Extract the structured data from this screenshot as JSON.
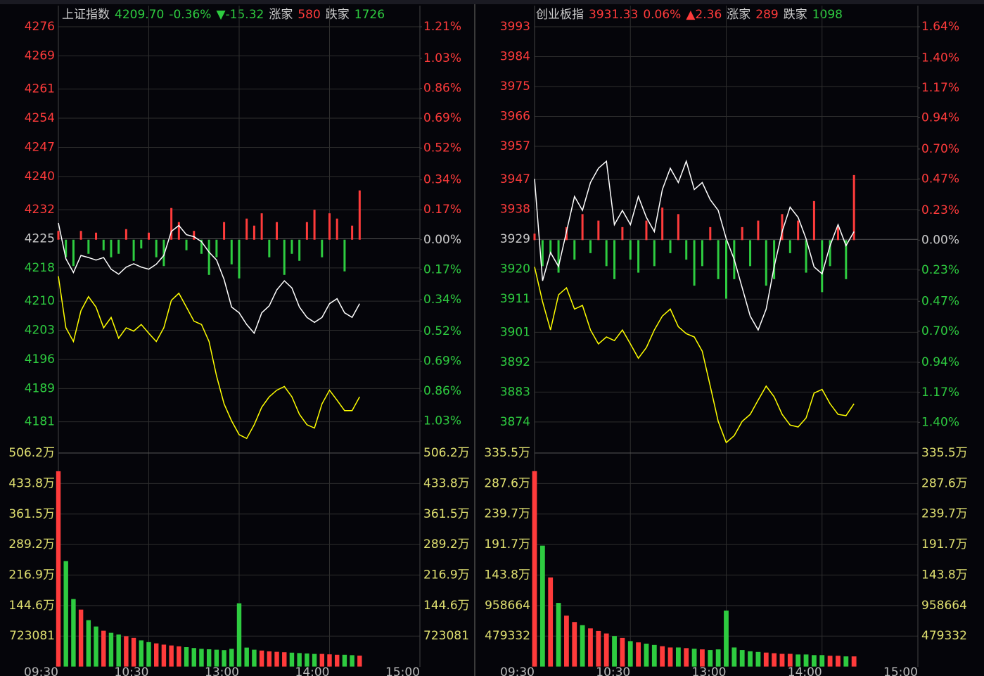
{
  "chart_data": [
    {
      "type": "line",
      "header": [
        {
          "text": "上证指数",
          "color": "#cccccc"
        },
        {
          "text": "4209.70",
          "color": "#2ecc40"
        },
        {
          "text": "-0.36%",
          "color": "#2ecc40"
        },
        {
          "text": "▼-15.32",
          "color": "#2ecc40"
        },
        {
          "text": "涨家",
          "color": "#cccccc"
        },
        {
          "text": "580",
          "color": "#ff3b3b"
        },
        {
          "text": "跌家",
          "color": "#cccccc"
        },
        {
          "text": "1726",
          "color": "#2ecc40"
        }
      ],
      "up_color": "#ff3b3b",
      "down_color": "#2ecc40",
      "flat_color": "#cccccc",
      "x": [
        0,
        5,
        10,
        15,
        20,
        25,
        30,
        35,
        40,
        45,
        50,
        55,
        60,
        65,
        70,
        75,
        80,
        85,
        90,
        95,
        100,
        105,
        110,
        115,
        120,
        125,
        130,
        135,
        140,
        145,
        150,
        155,
        160,
        165,
        170,
        175,
        180,
        185,
        190,
        195,
        200
      ],
      "xlim": [
        0,
        240
      ],
      "xticks": [
        {
          "value": 0,
          "label": "09:30"
        },
        {
          "value": 60,
          "label": "10:30"
        },
        {
          "value": 120,
          "label": "13:00"
        },
        {
          "value": 180,
          "label": "14:00"
        },
        {
          "value": 240,
          "label": "15:00"
        }
      ],
      "ylim": [
        4174,
        4276
      ],
      "yticks": [
        4276,
        4269,
        4261,
        4254,
        4247,
        4240,
        4232,
        4225,
        4218,
        4210,
        4203,
        4196,
        4189,
        4181
      ],
      "y2lim": [
        -1.2,
        1.21
      ],
      "y2ticks": [
        {
          "value": 1.21,
          "label": "1.21%"
        },
        {
          "value": 1.03,
          "label": "1.03%"
        },
        {
          "value": 0.86,
          "label": "0.86%"
        },
        {
          "value": 0.69,
          "label": "0.69%"
        },
        {
          "value": 0.52,
          "label": "0.52%"
        },
        {
          "value": 0.34,
          "label": "0.34%"
        },
        {
          "value": 0.17,
          "label": "0.17%"
        },
        {
          "value": 0,
          "label": "0.00%"
        },
        {
          "value": -0.17,
          "label": "0.17%"
        },
        {
          "value": -0.34,
          "label": "0.34%"
        },
        {
          "value": -0.52,
          "label": "0.52%"
        },
        {
          "value": -0.69,
          "label": "0.69%"
        },
        {
          "value": -0.86,
          "label": "0.86%"
        },
        {
          "value": -1.03,
          "label": "1.03%"
        }
      ],
      "series": [
        {
          "color": "#ffffff",
          "values": [
            4228.8,
            4220.2,
            4216.9,
            4221.0,
            4220.5,
            4219.9,
            4220.5,
            4217.7,
            4216.5,
            4218.2,
            4219.0,
            4218.2,
            4217.7,
            4218.9,
            4221.0,
            4226.8,
            4228.2,
            4226.0,
            4225.5,
            4224.3,
            4221.8,
            4219.9,
            4215.2,
            4208.6,
            4207.2,
            4204.4,
            4202.3,
            4207.2,
            4208.9,
            4212.7,
            4214.9,
            4213.2,
            4208.6,
            4206.1,
            4204.9,
            4206.1,
            4209.4,
            4210.6,
            4207.2,
            4206.1,
            4209.4
          ]
        },
        {
          "color": "#ffff00",
          "values": [
            4216.0,
            4203.6,
            4200.3,
            4207.7,
            4211.1,
            4208.6,
            4203.6,
            4206.1,
            4201.1,
            4203.6,
            4202.8,
            4204.4,
            4202.3,
            4200.3,
            4203.6,
            4210.2,
            4211.9,
            4208.6,
            4205.2,
            4204.4,
            4200.3,
            4192.0,
            4185.3,
            4181.2,
            4177.9,
            4177.0,
            4180.3,
            4184.5,
            4187.0,
            4188.6,
            4189.5,
            4187.0,
            4182.8,
            4180.3,
            4179.5,
            4185.3,
            4188.6,
            4186.2,
            4183.7,
            4183.7,
            4187.0
          ]
        },
        {
          "type": "bar",
          "axis": "y2",
          "values": [
            0.05,
            -0.1,
            -0.15,
            0.05,
            -0.08,
            0.04,
            -0.06,
            -0.1,
            -0.08,
            0.06,
            -0.12,
            -0.05,
            0.04,
            -0.1,
            -0.15,
            0.18,
            0.1,
            -0.06,
            0.05,
            -0.08,
            -0.2,
            -0.1,
            0.1,
            -0.14,
            -0.22,
            0.12,
            0.08,
            0.15,
            -0.1,
            0.1,
            -0.2,
            -0.08,
            -0.12,
            0.1,
            0.17,
            -0.1,
            0.15,
            0.12,
            -0.18,
            0.08,
            0.28
          ]
        }
      ],
      "volume": {
        "ylim": [
          0,
          5062000
        ],
        "tick_color": "#e0e070",
        "yticks": [
          {
            "value": 5062000,
            "label": "506.2万"
          },
          {
            "value": 4338000,
            "label": "433.8万"
          },
          {
            "value": 3615000,
            "label": "361.5万"
          },
          {
            "value": 2892000,
            "label": "289.2万"
          },
          {
            "value": 2169000,
            "label": "216.9万"
          },
          {
            "value": 1446000,
            "label": "144.6万"
          },
          723081
        ],
        "values": [
          4630000,
          2500000,
          1600000,
          1350000,
          1100000,
          950000,
          850000,
          800000,
          760000,
          720000,
          680000,
          620000,
          580000,
          550000,
          520000,
          500000,
          480000,
          460000,
          440000,
          420000,
          410000,
          400000,
          390000,
          420000,
          1500000,
          450000,
          400000,
          380000,
          360000,
          350000,
          340000,
          330000,
          320000,
          310000,
          300000,
          300000,
          290000,
          280000,
          280000,
          270000,
          260000
        ]
      }
    },
    {
      "type": "line",
      "header": [
        {
          "text": "创业板指",
          "color": "#cccccc"
        },
        {
          "text": "3931.33",
          "color": "#ff3b3b"
        },
        {
          "text": "0.06%",
          "color": "#ff3b3b"
        },
        {
          "text": "▲2.36",
          "color": "#ff3b3b"
        },
        {
          "text": "涨家",
          "color": "#cccccc"
        },
        {
          "text": "289",
          "color": "#ff3b3b"
        },
        {
          "text": "跌家",
          "color": "#cccccc"
        },
        {
          "text": "1098",
          "color": "#2ecc40"
        }
      ],
      "up_color": "#ff3b3b",
      "down_color": "#2ecc40",
      "flat_color": "#cccccc",
      "x": [
        0,
        5,
        10,
        15,
        20,
        25,
        30,
        35,
        40,
        45,
        50,
        55,
        60,
        65,
        70,
        75,
        80,
        85,
        90,
        95,
        100,
        105,
        110,
        115,
        120,
        125,
        130,
        135,
        140,
        145,
        150,
        155,
        160,
        165,
        170,
        175,
        180,
        185,
        190,
        195,
        200
      ],
      "xlim": [
        0,
        240
      ],
      "xticks": [
        {
          "value": 0,
          "label": "09:30"
        },
        {
          "value": 60,
          "label": "10:30"
        },
        {
          "value": 120,
          "label": "13:00"
        },
        {
          "value": 180,
          "label": "14:00"
        },
        {
          "value": 240,
          "label": "15:00"
        }
      ],
      "ylim": [
        3865.3,
        3993
      ],
      "yticks": [
        3993,
        3984,
        3975,
        3966,
        3957,
        3947,
        3938,
        3929,
        3920,
        3911,
        3901,
        3892,
        3883,
        3874
      ],
      "y2lim": [
        -1.62,
        1.64
      ],
      "y2ticks": [
        {
          "value": 1.64,
          "label": "1.64%"
        },
        {
          "value": 1.4,
          "label": "1.40%"
        },
        {
          "value": 1.17,
          "label": "1.17%"
        },
        {
          "value": 0.94,
          "label": "0.94%"
        },
        {
          "value": 0.7,
          "label": "0.70%"
        },
        {
          "value": 0.47,
          "label": "0.47%"
        },
        {
          "value": 0.23,
          "label": "0.23%"
        },
        {
          "value": 0,
          "label": "0.00%"
        },
        {
          "value": -0.23,
          "label": "0.23%"
        },
        {
          "value": -0.47,
          "label": "0.47%"
        },
        {
          "value": -0.7,
          "label": "0.70%"
        },
        {
          "value": -0.94,
          "label": "0.94%"
        },
        {
          "value": -1.17,
          "label": "1.17%"
        },
        {
          "value": -1.4,
          "label": "1.40%"
        }
      ],
      "series": [
        {
          "color": "#ffffff",
          "values": [
            3947.2,
            3916.5,
            3925.0,
            3920.8,
            3931.3,
            3941.9,
            3937.7,
            3946.1,
            3950.4,
            3952.5,
            3933.4,
            3937.7,
            3933.4,
            3941.9,
            3935.6,
            3931.3,
            3944.0,
            3950.4,
            3946.1,
            3952.5,
            3944.0,
            3946.1,
            3940.9,
            3937.7,
            3929.2,
            3922.9,
            3914.4,
            3905.9,
            3901.7,
            3908.0,
            3920.7,
            3931.3,
            3938.7,
            3935.6,
            3929.2,
            3920.7,
            3918.6,
            3927.1,
            3933.4,
            3927.1,
            3931.3
          ]
        },
        {
          "color": "#ffff00",
          "values": [
            3920.7,
            3910.2,
            3901.7,
            3912.3,
            3914.4,
            3908.0,
            3909.1,
            3901.7,
            3897.5,
            3899.6,
            3898.5,
            3901.7,
            3897.5,
            3893.2,
            3896.4,
            3901.7,
            3905.9,
            3908.0,
            3902.7,
            3900.6,
            3899.6,
            3895.3,
            3884.8,
            3874.2,
            3867.8,
            3869.9,
            3874.2,
            3876.3,
            3880.6,
            3884.8,
            3881.6,
            3876.3,
            3873.1,
            3872.5,
            3875.2,
            3882.7,
            3883.8,
            3879.5,
            3876.3,
            3875.9,
            3879.5
          ]
        },
        {
          "type": "bar",
          "axis": "y2",
          "values": [
            0.05,
            -0.2,
            -0.1,
            -0.25,
            0.1,
            -0.15,
            0.2,
            -0.1,
            0.15,
            -0.2,
            -0.3,
            0.1,
            -0.15,
            -0.25,
            0.15,
            -0.2,
            0.25,
            -0.1,
            0.2,
            -0.15,
            -0.35,
            -0.2,
            0.1,
            -0.3,
            -0.45,
            -0.3,
            0.1,
            -0.2,
            0.15,
            -0.35,
            -0.3,
            0.2,
            -0.1,
            0.15,
            -0.25,
            0.3,
            -0.4,
            -0.2,
            0.1,
            -0.3,
            0.5
          ]
        }
      ],
      "volume": {
        "ylim": [
          0,
          3355000
        ],
        "tick_color": "#e0e070",
        "yticks": [
          {
            "value": 3355000,
            "label": "335.5万"
          },
          {
            "value": 2876000,
            "label": "287.6万"
          },
          {
            "value": 2397000,
            "label": "239.7万"
          },
          {
            "value": 1917000,
            "label": "191.7万"
          },
          {
            "value": 1438000,
            "label": "143.8万"
          },
          958664,
          479332
        ],
        "values": [
          3070000,
          1900000,
          1400000,
          1000000,
          800000,
          700000,
          650000,
          600000,
          560000,
          520000,
          480000,
          450000,
          400000,
          380000,
          360000,
          340000,
          320000,
          300000,
          300000,
          290000,
          280000,
          270000,
          260000,
          270000,
          880000,
          300000,
          260000,
          240000,
          230000,
          220000,
          210000,
          200000,
          200000,
          190000,
          190000,
          180000,
          180000,
          170000,
          170000,
          160000,
          160000
        ]
      }
    }
  ]
}
